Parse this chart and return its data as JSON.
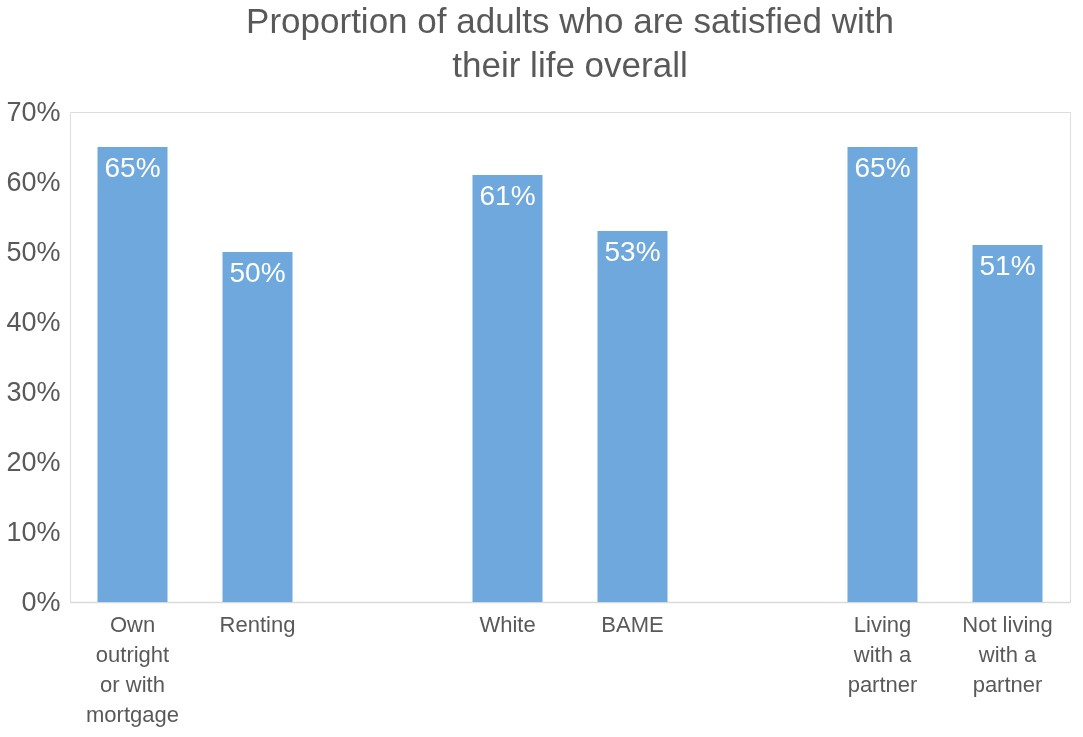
{
  "chart_data": {
    "type": "bar",
    "title": "Proportion of adults who are satisfied with their life overall",
    "categories": [
      "Own outright or with mortgage",
      "Renting",
      null,
      "White",
      "BAME",
      null,
      "Living with a partner",
      "Not living with a partner"
    ],
    "values": [
      65,
      50,
      null,
      61,
      53,
      null,
      65,
      51
    ],
    "value_labels": [
      "65%",
      "50%",
      null,
      "61%",
      "53%",
      null,
      "65%",
      "51%"
    ],
    "color": "#6fa8dc",
    "ylim": [
      0,
      70
    ],
    "yticks": [
      {
        "value": 0,
        "label": "0%"
      },
      {
        "value": 10,
        "label": "10%"
      },
      {
        "value": 20,
        "label": "20%"
      },
      {
        "value": 30,
        "label": "30%"
      },
      {
        "value": 40,
        "label": "40%"
      },
      {
        "value": 50,
        "label": "50%"
      },
      {
        "value": 60,
        "label": "60%"
      },
      {
        "value": 70,
        "label": "70%"
      }
    ],
    "grid": false
  }
}
